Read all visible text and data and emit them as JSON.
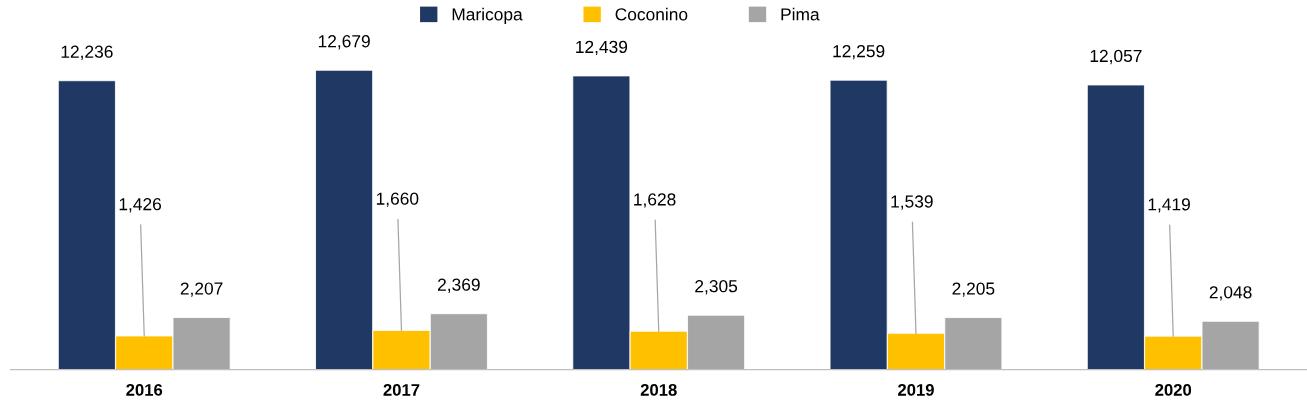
{
  "chart_data": {
    "type": "bar",
    "categories": [
      "2016",
      "2017",
      "2018",
      "2019",
      "2020"
    ],
    "series": [
      {
        "name": "Maricopa",
        "color": "#203864",
        "values": [
          12236,
          12679,
          12439,
          12259,
          12057
        ],
        "value_labels": [
          "12,236",
          "12,679",
          "12,439",
          "12,259",
          "12,057"
        ]
      },
      {
        "name": "Coconino",
        "color": "#ffc000",
        "values": [
          1426,
          1660,
          1628,
          1539,
          1419
        ],
        "value_labels": [
          "1,426",
          "1,660",
          "1,628",
          "1,539",
          "1,419"
        ]
      },
      {
        "name": "Pima",
        "color": "#a5a5a5",
        "values": [
          2207,
          2369,
          2305,
          2205,
          2048
        ],
        "value_labels": [
          "2,207",
          "2,369",
          "2,305",
          "2,205",
          "2,048"
        ]
      }
    ],
    "legend": "top",
    "grid": false
  }
}
